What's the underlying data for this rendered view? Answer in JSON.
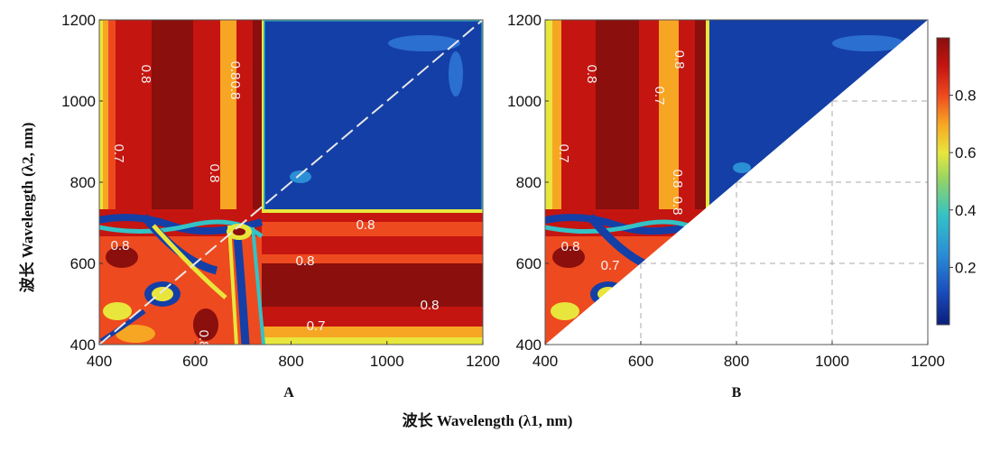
{
  "chart_data": {
    "type": "heatmap",
    "panels": [
      {
        "label": "A",
        "upper_triangle_masked": false,
        "contour_labels": [
          "0.8",
          "0.8",
          "0.7",
          "0.8",
          "0.8",
          "0.8",
          "0.8",
          "0.8",
          "0.7",
          "0.8",
          "0.8"
        ]
      },
      {
        "label": "B",
        "upper_triangle_masked": true,
        "contour_labels": [
          "0.8",
          "0.8",
          "0.7",
          "0.7",
          "0.8",
          "0.8",
          "0.8",
          "0.7"
        ]
      }
    ],
    "x_ticks": [
      "400",
      "600",
      "800",
      "1000",
      "1200"
    ],
    "y_ticks": [
      "400",
      "600",
      "800",
      "1000",
      "1200"
    ],
    "xlim": [
      400,
      1200
    ],
    "ylim": [
      400,
      1200
    ],
    "xlabel": "波长  Wavelength (λ1, nm)",
    "ylabel": "波长  Wavelength (λ2, nm)",
    "colorbar": {
      "ticks": [
        "0.2",
        "0.4",
        "0.6",
        "0.8"
      ],
      "tick_values": [
        0.2,
        0.4,
        0.6,
        0.8
      ],
      "range": [
        0,
        1
      ],
      "colormap": [
        "#0b1e7a",
        "#1a4fbf",
        "#2b8fd6",
        "#33c2c6",
        "#8fd36a",
        "#e8e63c",
        "#f7a623",
        "#ee4a1f",
        "#c51510",
        "#8a0f0d"
      ]
    },
    "grid": "dashed"
  }
}
